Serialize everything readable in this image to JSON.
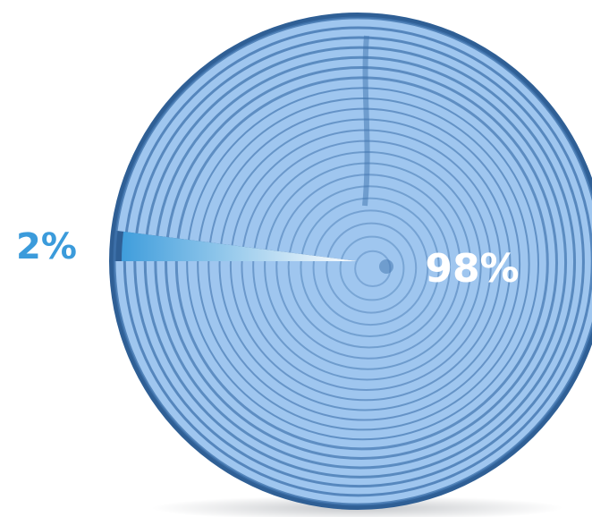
{
  "chart_data": {
    "type": "pie",
    "values": [
      2,
      98
    ],
    "value_labels": [
      "2%",
      "98%"
    ],
    "colors": [
      "#3b9bdb",
      "#9fc6ef"
    ]
  }
}
